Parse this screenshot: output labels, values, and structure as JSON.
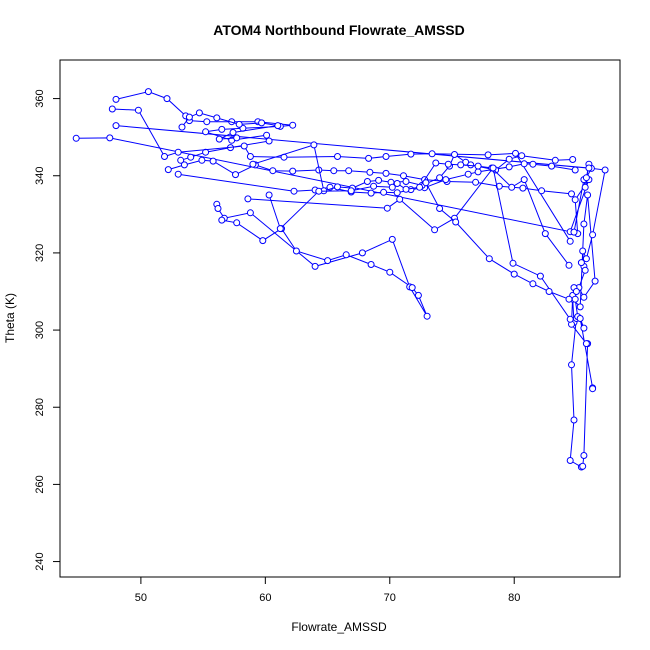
{
  "chart_data": {
    "type": "scatter",
    "title": "ATOM4 Northbound Flowrate_AMSSD",
    "xlabel": "Flowrate_AMSSD",
    "ylabel": "Theta (K)",
    "xlim": [
      43.5,
      88.5
    ],
    "ylim": [
      236,
      370
    ],
    "xticks": [
      50,
      60,
      70,
      80
    ],
    "yticks": [
      240,
      260,
      280,
      300,
      320,
      340,
      360
    ],
    "grid": false,
    "legend": "none",
    "style": {
      "line_color": "#0000ff",
      "marker": "open-circle",
      "connected": true
    },
    "series": [
      {
        "x": [
          44.8,
          47.5,
          84.5,
          86.0,
          84.9,
          85.1,
          84.8,
          85.6,
          85.7,
          86.0,
          85.8,
          86.2,
          48.0,
          86.0,
          87.3,
          86.3,
          85.8,
          85.5,
          85.6,
          85.4,
          85.7,
          85.2,
          85.6,
          86.5,
          85.9,
          85.6,
          85.3,
          84.7,
          84.8,
          85.0,
          84.6,
          84.8,
          84.5,
          85.4,
          85.5,
          85.6,
          85.9,
          85.8,
          84.6,
          84.7,
          84.8,
          85.0,
          84.9,
          85.1,
          85.6,
          85.3,
          86.3,
          86.3
        ],
        "y": [
          349.7,
          349.8,
          325.5,
          339.0,
          333.8,
          325.0,
          325.4,
          339.0,
          337.0,
          343.0,
          339.5,
          341.9,
          353.0,
          342.0,
          341.5,
          324.7,
          318.5,
          320.5,
          316.5,
          317.5,
          315.5,
          311.0,
          308.5,
          312.7,
          335.0,
          327.5,
          306.0,
          308.0,
          302.0,
          303.0,
          291.0,
          276.7,
          266.2,
          264.5,
          264.7,
          267.5,
          296.5,
          296.5,
          301.5,
          309.0,
          311.0,
          310.0,
          308.0,
          303.5,
          300.5,
          303.0,
          285.0,
          284.8
        ]
      },
      {
        "x": [
          48.0,
          50.6,
          52.1,
          53.6,
          53.9,
          55.3,
          57.3,
          59.4,
          62.2,
          61.2,
          58.2,
          56.5,
          55.2,
          57.3,
          60.1,
          60.3,
          57.2,
          55.2,
          54.0,
          53.2
        ],
        "y": [
          359.8,
          361.8,
          360.0,
          355.5,
          354.3,
          354.0,
          354.0,
          354.0,
          353.1,
          352.8,
          352.3,
          352.0,
          351.4,
          349.2,
          350.5,
          349.0,
          347.3,
          346.1,
          344.8,
          344.0
        ]
      },
      {
        "x": [
          53.3,
          53.9,
          54.7,
          56.1,
          57.9,
          59.7,
          61.0,
          57.4,
          56.3,
          57.7
        ],
        "y": [
          352.6,
          355.2,
          356.3,
          355.0,
          353.3,
          353.7,
          353.0,
          351.2,
          349.5,
          349.8
        ]
      },
      {
        "x": [
          56.1,
          56.2,
          56.7,
          58.8,
          64.0,
          67.8,
          70.2,
          71.6,
          73.0,
          72.3,
          71.8,
          70.0,
          68.5,
          66.5,
          65.0,
          62.5,
          61.3,
          59.8,
          57.7,
          56.5
        ],
        "y": [
          332.6,
          331.5,
          329.0,
          330.4,
          316.5,
          320.0,
          323.5,
          311.2,
          303.6,
          309.0,
          311.0,
          315.0,
          317.0,
          319.5,
          318.0,
          320.5,
          326.3,
          323.2,
          327.8,
          328.5
        ]
      },
      {
        "x": [
          47.7,
          49.8,
          51.9,
          53.0,
          58.3,
          58.8,
          61.5,
          65.8,
          68.3,
          69.7,
          71.7,
          73.4,
          77.9,
          80.1,
          84.5
        ],
        "y": [
          357.3,
          357.0,
          345.0,
          346.1,
          347.7,
          345.0,
          344.8,
          345.0,
          344.5,
          345.0,
          345.6,
          345.7,
          345.4,
          345.8,
          323.0
        ]
      },
      {
        "x": [
          52.2,
          53.5,
          54.9,
          55.8,
          57.6,
          59.2,
          60.6,
          62.2,
          64.3,
          65.5,
          66.7,
          68.4,
          69.7,
          71.1,
          72.8,
          74.6,
          76.9,
          78.8,
          80.7,
          82.2,
          84.6
        ],
        "y": [
          341.6,
          342.8,
          344.0,
          343.8,
          340.3,
          342.8,
          341.3,
          341.2,
          341.5,
          341.3,
          341.3,
          340.9,
          340.6,
          340.0,
          339.0,
          338.5,
          338.3,
          337.3,
          336.8,
          336.1,
          335.3
        ]
      },
      {
        "x": [
          53.0,
          62.3,
          64.0,
          65.2,
          66.9,
          68.5,
          69.5,
          70.6,
          71.7,
          72.8,
          74.5,
          76.3,
          77.1,
          79.6,
          80.8,
          81.5,
          83.0,
          84.9
        ],
        "y": [
          340.4,
          336.0,
          336.3,
          337.0,
          335.8,
          335.5,
          335.7,
          335.6,
          336.4,
          336.9,
          339.0,
          340.4,
          341.0,
          342.3,
          343.1,
          343.0,
          342.5,
          341.5
        ]
      },
      {
        "x": [
          59.0,
          63.9,
          64.7,
          65.8,
          67.0,
          68.2,
          69.1,
          70.1,
          71.3,
          72.6,
          74.0,
          74.8,
          75.2,
          76.1,
          76.5,
          78.5,
          79.6,
          80.6,
          83.3,
          84.7
        ],
        "y": [
          343.0,
          348.0,
          336.1,
          337.1,
          336.8,
          338.5,
          338.8,
          338.3,
          338.5,
          337.5,
          339.5,
          342.5,
          345.5,
          343.5,
          342.8,
          341.5,
          344.3,
          345.2,
          344.0,
          344.2
        ]
      },
      {
        "x": [
          60.3,
          61.2,
          64.3,
          66.9,
          68.7,
          70.2,
          70.6,
          71.3,
          72.4,
          73.7,
          74.7,
          75.7,
          77.1,
          78.2,
          79.8,
          80.8,
          82.5,
          84.4
        ],
        "y": [
          335.0,
          326.3,
          336.0,
          336.1,
          337.3,
          337.0,
          338.0,
          336.5,
          337.0,
          343.3,
          343.0,
          342.8,
          342.5,
          342.0,
          337.0,
          339.0,
          325.0,
          316.8
        ]
      },
      {
        "x": [
          58.6,
          69.8,
          70.8,
          73.6,
          75.2,
          78.3,
          79.9,
          82.1,
          84.5
        ],
        "y": [
          334.0,
          331.6,
          333.9,
          326.0,
          329.0,
          342.0,
          317.3,
          314.0,
          302.8
        ]
      },
      {
        "x": [
          72.9,
          74.0,
          75.3,
          78.0,
          80.0,
          81.5,
          82.8,
          84.4
        ],
        "y": [
          338.2,
          331.5,
          328.0,
          318.5,
          314.5,
          312.0,
          310.0,
          308.0
        ]
      }
    ]
  }
}
